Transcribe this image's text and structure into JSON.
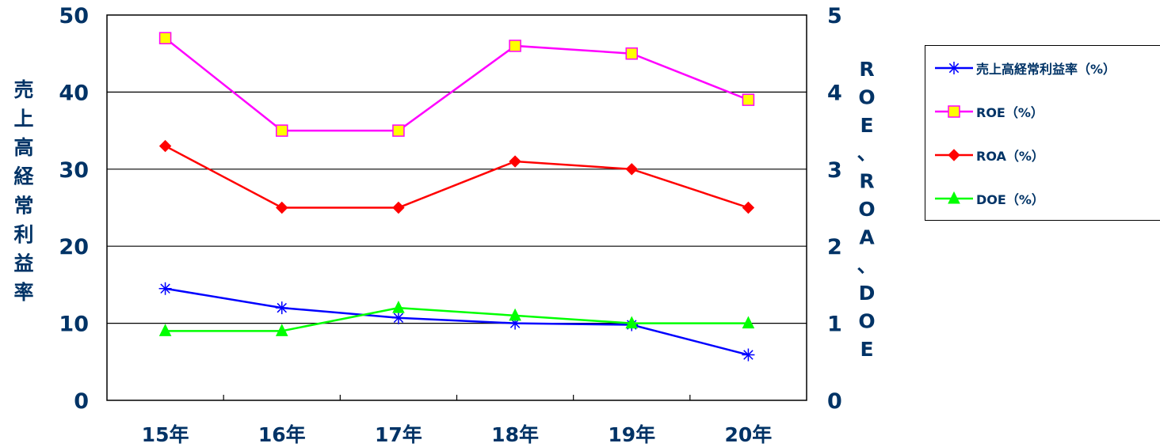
{
  "chart_data": {
    "type": "line",
    "categories": [
      "15年",
      "16年",
      "17年",
      "18年",
      "19年",
      "20年"
    ],
    "ylabel_left": "売上高経常利益率",
    "ylabel_right": "ROE、ROA、DOE",
    "ylim_left": [
      0,
      50
    ],
    "ylim_right": [
      0,
      5
    ],
    "yticks_left": [
      "0",
      "10",
      "20",
      "30",
      "40",
      "50"
    ],
    "yticks_right": [
      "0",
      "1",
      "2",
      "3",
      "4",
      "5"
    ],
    "grid": true,
    "legend_position": "right",
    "series": [
      {
        "name": "売上高経常利益率（%）",
        "axis": "left",
        "color": "#0000ff",
        "marker": "asterisk",
        "values": [
          14.5,
          12.0,
          10.7,
          10.0,
          9.8,
          5.9
        ]
      },
      {
        "name": "ROE（%）",
        "axis": "right",
        "color": "#ff00ff",
        "marker": "square",
        "marker_fill": "#ffff00",
        "values": [
          4.7,
          3.5,
          3.5,
          4.6,
          4.5,
          3.9
        ]
      },
      {
        "name": "ROA（%）",
        "axis": "right",
        "color": "#ff0000",
        "marker": "diamond",
        "marker_fill": "#ff0000",
        "values": [
          3.3,
          2.5,
          2.5,
          3.1,
          3.0,
          2.5
        ]
      },
      {
        "name": "DOE（%）",
        "axis": "right",
        "color": "#00ff00",
        "marker": "triangle",
        "marker_fill": "#00ff00",
        "values": [
          0.9,
          0.9,
          1.2,
          1.1,
          1.0,
          1.0
        ]
      }
    ]
  }
}
